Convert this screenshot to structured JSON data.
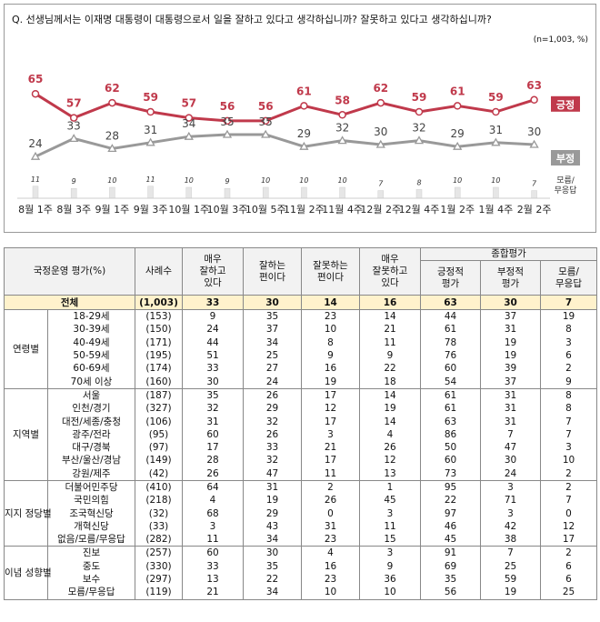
{
  "question": "Q. 선생님께서는 이재명 대통령이 대통령으로서 일을 잘하고 있다고 생각하십니까? 잘못하고 있다고 생각하십니까?",
  "sample_note": "(n=1,003, %)",
  "chart_data": {
    "type": "line",
    "categories": [
      "8월 1주",
      "8월 3주",
      "9월 1주",
      "9월 3주",
      "10월 1주",
      "10월 3주",
      "10월 5주",
      "11월 2주",
      "11월 4주",
      "12월 2주",
      "12월 4주",
      "1월 2주",
      "1월 4주",
      "2월 2주"
    ],
    "series": [
      {
        "name": "긍정",
        "color": "#c0394b",
        "values": [
          65,
          57,
          62,
          59,
          57,
          56,
          56,
          61,
          58,
          62,
          59,
          61,
          59,
          63
        ]
      },
      {
        "name": "부정",
        "color": "#999999",
        "values": [
          24,
          33,
          28,
          31,
          34,
          35,
          35,
          29,
          32,
          30,
          32,
          29,
          31,
          30
        ]
      },
      {
        "name": "모름/\n무응답",
        "color": "#e6e6e6",
        "type": "bar",
        "values": [
          11,
          9,
          10,
          11,
          10,
          9,
          10,
          10,
          10,
          7,
          8,
          10,
          10,
          7
        ]
      }
    ],
    "ylim": [
      0,
      80
    ],
    "grid": false
  },
  "table": {
    "headers": {
      "label": "국정운영 평가(%)",
      "n": "사례수",
      "very_good": "매우\n잘하고\n있다",
      "good": "잘하는\n편이다",
      "bad": "잘못하는\n편이다",
      "very_bad": "매우\n잘못하고\n있다",
      "summary": "종합평가",
      "positive": "긍정적\n평가",
      "negative": "부정적\n평가",
      "dk": "모름/\n무응답"
    },
    "total": {
      "label": "전체",
      "n": "(1,003)",
      "v": [
        "33",
        "30",
        "14",
        "16",
        "63",
        "30",
        "7"
      ]
    },
    "groups": [
      {
        "name": "연령별",
        "rows": [
          {
            "label": "18-29세",
            "n": "(153)",
            "v": [
              "9",
              "35",
              "23",
              "14",
              "44",
              "37",
              "19"
            ]
          },
          {
            "label": "30-39세",
            "n": "(150)",
            "v": [
              "24",
              "37",
              "10",
              "21",
              "61",
              "31",
              "8"
            ]
          },
          {
            "label": "40-49세",
            "n": "(171)",
            "v": [
              "44",
              "34",
              "8",
              "11",
              "78",
              "19",
              "3"
            ]
          },
          {
            "label": "50-59세",
            "n": "(195)",
            "v": [
              "51",
              "25",
              "9",
              "9",
              "76",
              "19",
              "6"
            ]
          },
          {
            "label": "60-69세",
            "n": "(174)",
            "v": [
              "33",
              "27",
              "16",
              "22",
              "60",
              "39",
              "2"
            ]
          },
          {
            "label": "70세 이상",
            "n": "(160)",
            "v": [
              "30",
              "24",
              "19",
              "18",
              "54",
              "37",
              "9"
            ]
          }
        ]
      },
      {
        "name": "지역별",
        "rows": [
          {
            "label": "서울",
            "n": "(187)",
            "v": [
              "35",
              "26",
              "17",
              "14",
              "61",
              "31",
              "8"
            ]
          },
          {
            "label": "인천/경기",
            "n": "(327)",
            "v": [
              "32",
              "29",
              "12",
              "19",
              "61",
              "31",
              "8"
            ]
          },
          {
            "label": "대전/세종/충청",
            "n": "(106)",
            "v": [
              "31",
              "32",
              "17",
              "14",
              "63",
              "31",
              "7"
            ]
          },
          {
            "label": "광주/전라",
            "n": "(95)",
            "v": [
              "60",
              "26",
              "3",
              "4",
              "86",
              "7",
              "7"
            ]
          },
          {
            "label": "대구/경북",
            "n": "(97)",
            "v": [
              "17",
              "33",
              "21",
              "26",
              "50",
              "47",
              "3"
            ]
          },
          {
            "label": "부산/울산/경남",
            "n": "(149)",
            "v": [
              "28",
              "32",
              "17",
              "12",
              "60",
              "30",
              "10"
            ]
          },
          {
            "label": "강원/제주",
            "n": "(42)",
            "v": [
              "26",
              "47",
              "11",
              "13",
              "73",
              "24",
              "2"
            ]
          }
        ]
      },
      {
        "name": "지지\n정당별",
        "rows": [
          {
            "label": "더불어민주당",
            "n": "(410)",
            "v": [
              "64",
              "31",
              "2",
              "1",
              "95",
              "3",
              "2"
            ]
          },
          {
            "label": "국민의힘",
            "n": "(218)",
            "v": [
              "4",
              "19",
              "26",
              "45",
              "22",
              "71",
              "7"
            ]
          },
          {
            "label": "조국혁신당",
            "n": "(32)",
            "v": [
              "68",
              "29",
              "0",
              "3",
              "97",
              "3",
              "0"
            ]
          },
          {
            "label": "개혁신당",
            "n": "(33)",
            "v": [
              "3",
              "43",
              "31",
              "11",
              "46",
              "42",
              "12"
            ]
          },
          {
            "label": "없음/모름/무응답",
            "n": "(282)",
            "v": [
              "11",
              "34",
              "23",
              "15",
              "45",
              "38",
              "17"
            ]
          }
        ]
      },
      {
        "name": "이념\n성향별",
        "rows": [
          {
            "label": "진보",
            "n": "(257)",
            "v": [
              "60",
              "30",
              "4",
              "3",
              "91",
              "7",
              "2"
            ]
          },
          {
            "label": "중도",
            "n": "(330)",
            "v": [
              "33",
              "35",
              "16",
              "9",
              "69",
              "25",
              "6"
            ]
          },
          {
            "label": "보수",
            "n": "(297)",
            "v": [
              "13",
              "22",
              "23",
              "36",
              "35",
              "59",
              "6"
            ]
          },
          {
            "label": "모름/무응답",
            "n": "(119)",
            "v": [
              "21",
              "34",
              "10",
              "10",
              "56",
              "19",
              "25"
            ]
          }
        ]
      }
    ]
  }
}
